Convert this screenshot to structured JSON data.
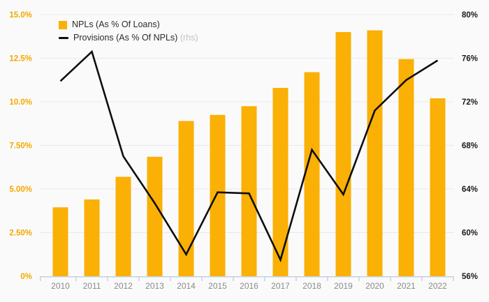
{
  "legend": {
    "bars_label": "NPLs (As % Of Loans)",
    "line_label": "Provisions (As % Of NPLs)",
    "line_label_suffix": "(rhs)"
  },
  "colors": {
    "background": "#fafafa",
    "bar": "#fab005",
    "line": "#0e0e0e",
    "left_axis_labels": "#f5a800",
    "right_axis_labels": "#1a1a1a",
    "year_labels": "#8a8a8a",
    "gridline": "#e9e9e9",
    "axis_line": "#c7d1e2",
    "legend_text": "#2b2b2b",
    "legend_suffix": "#c2c2c2"
  },
  "chart_data": {
    "type": "bar",
    "subtype": "bar-line-combo",
    "title": "",
    "categories": [
      "2010",
      "2011",
      "2012",
      "2013",
      "2014",
      "2015",
      "2016",
      "2017",
      "2018",
      "2019",
      "2020",
      "2021",
      "2022"
    ],
    "series": [
      {
        "name": "NPLs (As % Of Loans)",
        "type": "bar",
        "axis": "left",
        "color": "#fab005",
        "values": [
          3.95,
          4.4,
          5.7,
          6.85,
          8.9,
          9.25,
          9.75,
          10.8,
          11.7,
          14.0,
          14.1,
          12.45,
          10.2
        ]
      },
      {
        "name": "Provisions (As % Of NPLs) (rhs)",
        "type": "line",
        "axis": "right",
        "color": "#0e0e0e",
        "values": [
          73.9,
          76.6,
          67.0,
          62.7,
          58.0,
          63.7,
          63.6,
          57.5,
          67.6,
          63.5,
          71.2,
          74.0,
          75.8
        ]
      }
    ],
    "left_axis": {
      "min": 0,
      "max": 15,
      "step": 2.5,
      "tick_labels": [
        "15.0%",
        "12.5%",
        "10.0%",
        "7.50%",
        "5.00%",
        "2.50%",
        "0%"
      ]
    },
    "right_axis": {
      "min": 56,
      "max": 80,
      "step": 4,
      "tick_labels": [
        "80%",
        "76%",
        "72%",
        "68%",
        "64%",
        "60%",
        "56%"
      ]
    },
    "grid": true,
    "legend_position": "top-left"
  }
}
